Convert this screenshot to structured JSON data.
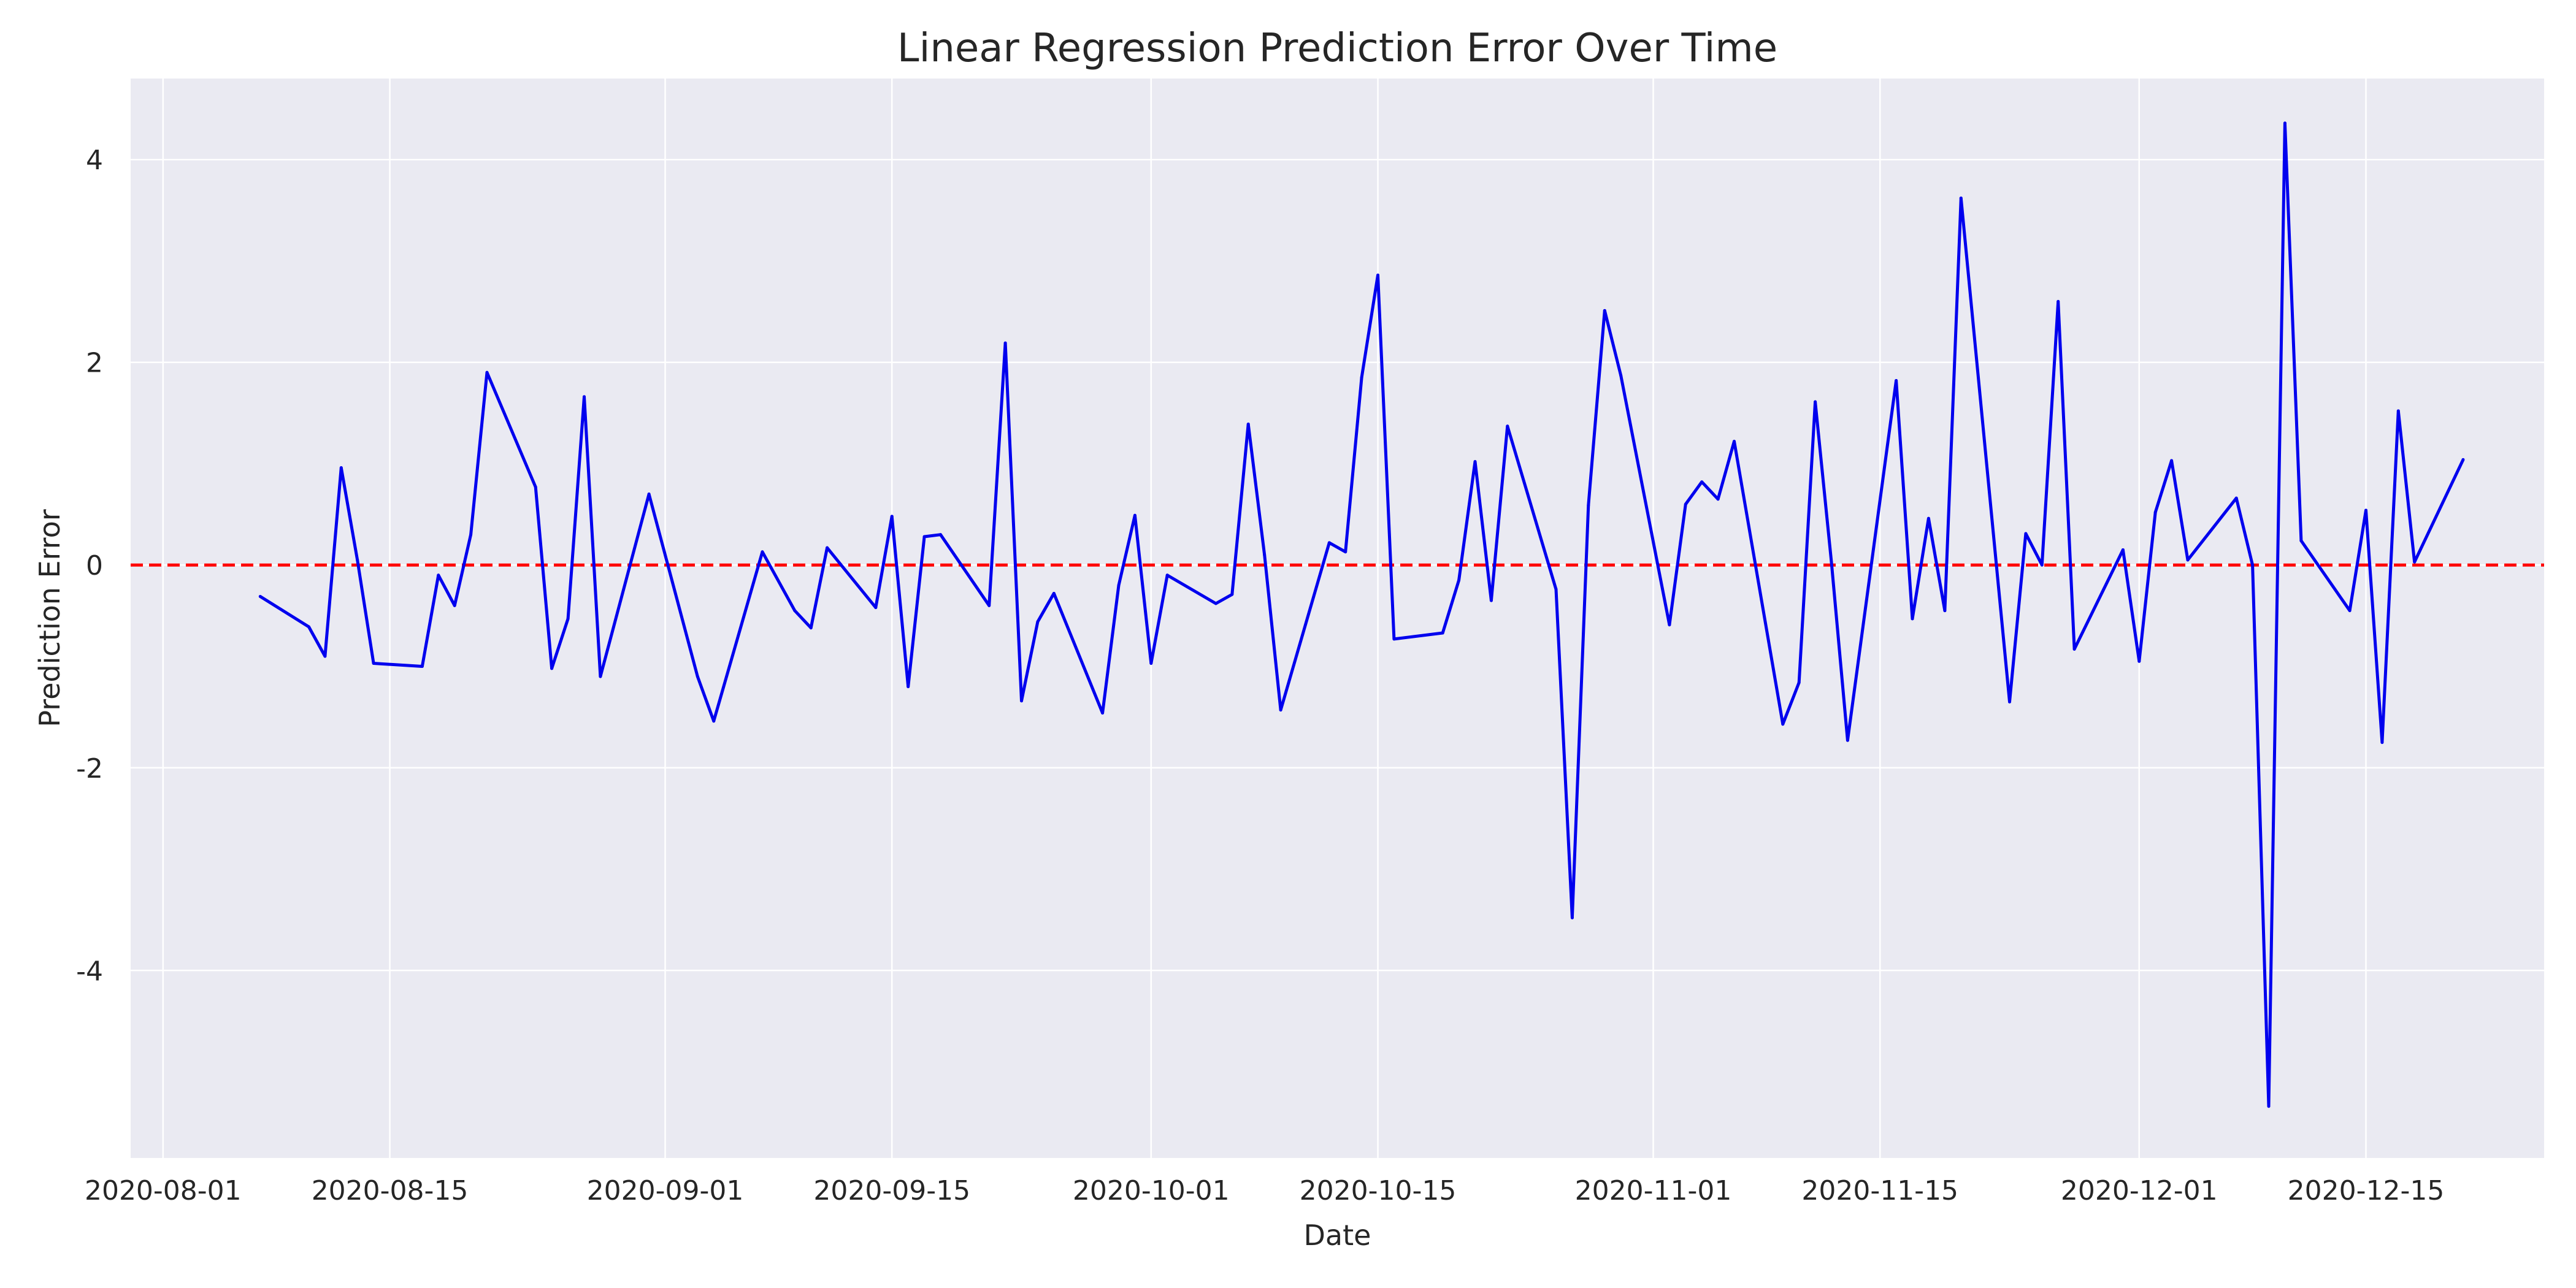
{
  "chart_data": {
    "type": "line",
    "title": "Linear Regression Prediction Error Over Time",
    "xlabel": "Date",
    "ylabel": "Prediction Error",
    "x_axis_type": "date",
    "xlim": [
      "2020-07-30",
      "2020-12-26"
    ],
    "ylim": [
      -5.85,
      4.8
    ],
    "xticks": [
      "2020-08-01",
      "2020-08-15",
      "2020-09-01",
      "2020-09-15",
      "2020-10-01",
      "2020-10-15",
      "2020-11-01",
      "2020-11-15",
      "2020-12-01",
      "2020-12-15"
    ],
    "yticks": [
      -4,
      -2,
      0,
      2,
      4
    ],
    "grid": true,
    "plot_background": "#eaeaf2",
    "reference_line": {
      "y": 0,
      "color": "#ff0000",
      "style": "dashed"
    },
    "series": [
      {
        "color": "#0000ee",
        "x": [
          "2020-08-07",
          "2020-08-10",
          "2020-08-11",
          "2020-08-12",
          "2020-08-13",
          "2020-08-14",
          "2020-08-17",
          "2020-08-18",
          "2020-08-19",
          "2020-08-20",
          "2020-08-21",
          "2020-08-24",
          "2020-08-25",
          "2020-08-26",
          "2020-08-27",
          "2020-08-28",
          "2020-08-31",
          "2020-09-03",
          "2020-09-04",
          "2020-09-07",
          "2020-09-09",
          "2020-09-10",
          "2020-09-11",
          "2020-09-14",
          "2020-09-15",
          "2020-09-16",
          "2020-09-17",
          "2020-09-18",
          "2020-09-21",
          "2020-09-22",
          "2020-09-23",
          "2020-09-24",
          "2020-09-25",
          "2020-09-28",
          "2020-09-29",
          "2020-09-30",
          "2020-10-01",
          "2020-10-02",
          "2020-10-05",
          "2020-10-06",
          "2020-10-07",
          "2020-10-08",
          "2020-10-09",
          "2020-10-12",
          "2020-10-13",
          "2020-10-14",
          "2020-10-15",
          "2020-10-16",
          "2020-10-19",
          "2020-10-20",
          "2020-10-21",
          "2020-10-22",
          "2020-10-23",
          "2020-10-26",
          "2020-10-27",
          "2020-10-28",
          "2020-10-29",
          "2020-10-30",
          "2020-11-02",
          "2020-11-03",
          "2020-11-04",
          "2020-11-05",
          "2020-11-06",
          "2020-11-09",
          "2020-11-10",
          "2020-11-11",
          "2020-11-12",
          "2020-11-13",
          "2020-11-16",
          "2020-11-17",
          "2020-11-18",
          "2020-11-19",
          "2020-11-20",
          "2020-11-23",
          "2020-11-24",
          "2020-11-25",
          "2020-11-26",
          "2020-11-27",
          "2020-11-30",
          "2020-12-01",
          "2020-12-02",
          "2020-12-03",
          "2020-12-04",
          "2020-12-07",
          "2020-12-08",
          "2020-12-09",
          "2020-12-10",
          "2020-12-11",
          "2020-12-14",
          "2020-12-15",
          "2020-12-16",
          "2020-12-17",
          "2020-12-18",
          "2020-12-21"
        ],
        "y": [
          -0.31,
          -0.61,
          -0.9,
          0.96,
          0.05,
          -0.97,
          -1.0,
          -0.1,
          -0.4,
          0.3,
          1.9,
          0.77,
          -1.02,
          -0.53,
          1.66,
          -1.1,
          0.7,
          -1.1,
          -1.54,
          0.13,
          -0.45,
          -0.62,
          0.17,
          -0.42,
          0.48,
          -1.2,
          0.28,
          0.3,
          -0.4,
          2.19,
          -1.34,
          -0.56,
          -0.28,
          -1.46,
          -0.2,
          0.49,
          -0.97,
          -0.1,
          -0.38,
          -0.29,
          1.39,
          0.1,
          -1.43,
          0.22,
          0.13,
          1.85,
          2.86,
          -0.73,
          -0.67,
          -0.15,
          1.02,
          -0.35,
          1.37,
          -0.24,
          -3.48,
          0.59,
          2.51,
          1.87,
          -0.59,
          0.6,
          0.82,
          0.65,
          1.22,
          -1.57,
          -1.16,
          1.61,
          0.03,
          -1.73,
          1.82,
          -0.53,
          0.46,
          -0.45,
          3.62,
          -1.35,
          0.31,
          0.0,
          2.6,
          -0.83,
          0.15,
          -0.95,
          0.52,
          1.03,
          0.05,
          0.66,
          0.0,
          -5.34,
          4.36,
          0.24,
          -0.45,
          0.54,
          -1.75,
          1.52,
          0.03,
          1.04
        ]
      }
    ]
  }
}
